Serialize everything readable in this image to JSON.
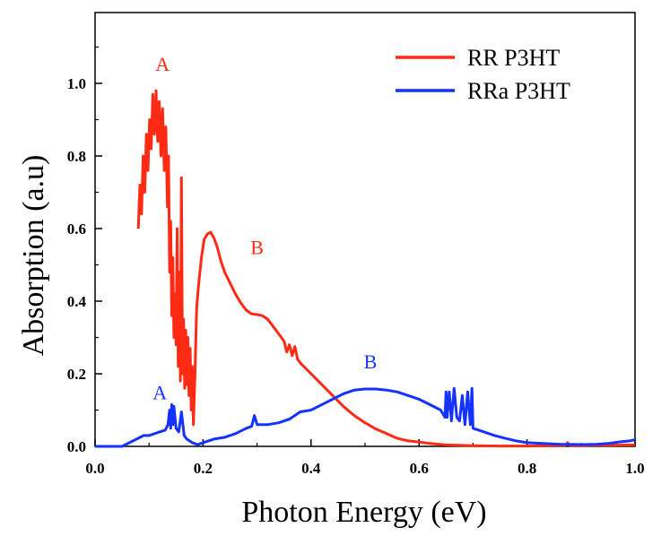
{
  "chart_data": {
    "type": "line",
    "xlabel": "Photon Energy (eV)",
    "ylabel": "Absorption (a.u)",
    "xlim": [
      0.0,
      1.0
    ],
    "ylim": [
      0.0,
      1.0
    ],
    "x_ticks": [
      "0.0",
      "0.2",
      "0.4",
      "0.6",
      "0.8",
      "1.0"
    ],
    "y_ticks": [
      "0.0",
      "0.2",
      "0.4",
      "0.6",
      "0.8",
      "1.0"
    ],
    "grid": false,
    "legend_position": "top-right",
    "series": [
      {
        "name": "RR P3HT",
        "color": "#ff2a14",
        "points": [
          [
            0.08,
            0.6
          ],
          [
            0.083,
            0.72
          ],
          [
            0.086,
            0.64
          ],
          [
            0.089,
            0.8
          ],
          [
            0.092,
            0.7
          ],
          [
            0.095,
            0.86
          ],
          [
            0.098,
            0.76
          ],
          [
            0.101,
            0.9
          ],
          [
            0.104,
            0.82
          ],
          [
            0.107,
            0.97
          ],
          [
            0.11,
            0.86
          ],
          [
            0.113,
            0.98
          ],
          [
            0.116,
            0.84
          ],
          [
            0.119,
            0.95
          ],
          [
            0.122,
            0.8
          ],
          [
            0.125,
            0.93
          ],
          [
            0.128,
            0.76
          ],
          [
            0.131,
            0.88
          ],
          [
            0.134,
            0.66
          ],
          [
            0.136,
            0.8
          ],
          [
            0.138,
            0.48
          ],
          [
            0.14,
            0.62
          ],
          [
            0.142,
            0.36
          ],
          [
            0.144,
            0.52
          ],
          [
            0.146,
            0.3
          ],
          [
            0.148,
            0.42
          ],
          [
            0.15,
            0.28
          ],
          [
            0.152,
            0.6
          ],
          [
            0.154,
            0.22
          ],
          [
            0.156,
            0.48
          ],
          [
            0.158,
            0.18
          ],
          [
            0.16,
            0.74
          ],
          [
            0.162,
            0.2
          ],
          [
            0.164,
            0.35
          ],
          [
            0.166,
            0.16
          ],
          [
            0.168,
            0.32
          ],
          [
            0.17,
            0.17
          ],
          [
            0.172,
            0.3
          ],
          [
            0.174,
            0.14
          ],
          [
            0.176,
            0.27
          ],
          [
            0.178,
            0.1
          ],
          [
            0.18,
            0.22
          ],
          [
            0.182,
            0.06
          ],
          [
            0.185,
            0.2
          ],
          [
            0.188,
            0.38
          ],
          [
            0.192,
            0.45
          ],
          [
            0.197,
            0.52
          ],
          [
            0.202,
            0.57
          ],
          [
            0.208,
            0.585
          ],
          [
            0.214,
            0.59
          ],
          [
            0.22,
            0.575
          ],
          [
            0.226,
            0.55
          ],
          [
            0.233,
            0.51
          ],
          [
            0.24,
            0.48
          ],
          [
            0.25,
            0.45
          ],
          [
            0.26,
            0.42
          ],
          [
            0.27,
            0.395
          ],
          [
            0.28,
            0.375
          ],
          [
            0.29,
            0.365
          ],
          [
            0.3,
            0.363
          ],
          [
            0.31,
            0.36
          ],
          [
            0.32,
            0.35
          ],
          [
            0.33,
            0.33
          ],
          [
            0.34,
            0.31
          ],
          [
            0.35,
            0.29
          ],
          [
            0.355,
            0.26
          ],
          [
            0.36,
            0.28
          ],
          [
            0.365,
            0.25
          ],
          [
            0.37,
            0.275
          ],
          [
            0.375,
            0.24
          ],
          [
            0.38,
            0.23
          ],
          [
            0.4,
            0.2
          ],
          [
            0.42,
            0.17
          ],
          [
            0.44,
            0.14
          ],
          [
            0.46,
            0.11
          ],
          [
            0.48,
            0.085
          ],
          [
            0.5,
            0.065
          ],
          [
            0.52,
            0.048
          ],
          [
            0.54,
            0.035
          ],
          [
            0.56,
            0.022
          ],
          [
            0.58,
            0.015
          ],
          [
            0.6,
            0.012
          ],
          [
            0.62,
            0.008
          ],
          [
            0.65,
            0.004
          ],
          [
            0.7,
            0.002
          ],
          [
            0.75,
            0.001
          ],
          [
            0.8,
            0.001
          ],
          [
            0.87,
            0.002
          ],
          [
            0.875,
            0.01
          ],
          [
            0.88,
            0.002
          ],
          [
            0.9,
            0.002
          ],
          [
            0.92,
            0.003
          ],
          [
            0.95,
            0.003
          ],
          [
            1.0,
            0.004
          ]
        ]
      },
      {
        "name": "RRa P3HT",
        "color": "#1433ff",
        "points": [
          [
            0.0,
            0.0
          ],
          [
            0.05,
            0.0
          ],
          [
            0.09,
            0.03
          ],
          [
            0.1,
            0.03
          ],
          [
            0.11,
            0.035
          ],
          [
            0.12,
            0.04
          ],
          [
            0.13,
            0.045
          ],
          [
            0.135,
            0.06
          ],
          [
            0.138,
            0.1
          ],
          [
            0.14,
            0.05
          ],
          [
            0.142,
            0.115
          ],
          [
            0.144,
            0.06
          ],
          [
            0.146,
            0.11
          ],
          [
            0.15,
            0.05
          ],
          [
            0.155,
            0.04
          ],
          [
            0.16,
            0.095
          ],
          [
            0.165,
            0.03
          ],
          [
            0.17,
            0.02
          ],
          [
            0.18,
            0.01
          ],
          [
            0.19,
            0.005
          ],
          [
            0.2,
            0.01
          ],
          [
            0.22,
            0.02
          ],
          [
            0.24,
            0.025
          ],
          [
            0.26,
            0.035
          ],
          [
            0.28,
            0.05
          ],
          [
            0.29,
            0.055
          ],
          [
            0.295,
            0.085
          ],
          [
            0.3,
            0.06
          ],
          [
            0.32,
            0.06
          ],
          [
            0.34,
            0.065
          ],
          [
            0.36,
            0.075
          ],
          [
            0.38,
            0.095
          ],
          [
            0.4,
            0.1
          ],
          [
            0.42,
            0.115
          ],
          [
            0.44,
            0.13
          ],
          [
            0.46,
            0.145
          ],
          [
            0.48,
            0.155
          ],
          [
            0.5,
            0.158
          ],
          [
            0.52,
            0.158
          ],
          [
            0.54,
            0.155
          ],
          [
            0.56,
            0.15
          ],
          [
            0.58,
            0.14
          ],
          [
            0.6,
            0.13
          ],
          [
            0.62,
            0.115
          ],
          [
            0.64,
            0.1
          ],
          [
            0.648,
            0.08
          ],
          [
            0.65,
            0.15
          ],
          [
            0.652,
            0.08
          ],
          [
            0.656,
            0.15
          ],
          [
            0.66,
            0.07
          ],
          [
            0.665,
            0.16
          ],
          [
            0.67,
            0.08
          ],
          [
            0.675,
            0.07
          ],
          [
            0.68,
            0.14
          ],
          [
            0.685,
            0.06
          ],
          [
            0.69,
            0.15
          ],
          [
            0.695,
            0.06
          ],
          [
            0.698,
            0.16
          ],
          [
            0.7,
            0.05
          ],
          [
            0.72,
            0.04
          ],
          [
            0.74,
            0.03
          ],
          [
            0.76,
            0.022
          ],
          [
            0.78,
            0.015
          ],
          [
            0.8,
            0.01
          ],
          [
            0.83,
            0.008
          ],
          [
            0.86,
            0.006
          ],
          [
            0.9,
            0.005
          ],
          [
            0.93,
            0.006
          ],
          [
            0.95,
            0.008
          ],
          [
            0.97,
            0.012
          ],
          [
            0.99,
            0.015
          ],
          [
            1.0,
            0.018
          ]
        ]
      }
    ],
    "annotations": [
      {
        "text": "A",
        "x": 0.125,
        "y": 1.035,
        "color": "#ff2a14"
      },
      {
        "text": "B",
        "x": 0.3,
        "y": 0.53,
        "color": "#ff2a14"
      },
      {
        "text": "A",
        "x": 0.12,
        "y": 0.13,
        "color": "#1433ff"
      },
      {
        "text": "B",
        "x": 0.51,
        "y": 0.215,
        "color": "#1433ff"
      }
    ]
  }
}
